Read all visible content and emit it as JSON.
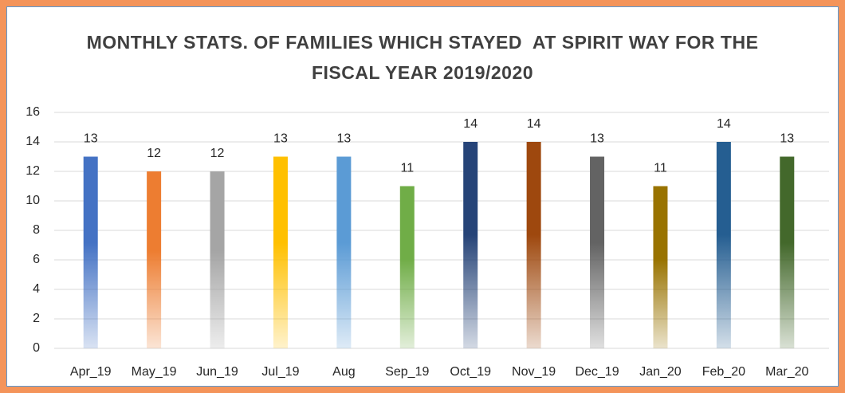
{
  "chart_data": {
    "type": "bar",
    "title": "MONTHLY STATS. OF FAMILIES WHICH STAYED  AT SPIRIT WAY FOR THE FISCAL YEAR 2019/2020",
    "categories": [
      "Apr_19",
      "May_19",
      "Jun_19",
      "Jul_19",
      "Aug",
      "Sep_19",
      "Oct_19",
      "Nov_19",
      "Dec_19",
      "Jan_20",
      "Feb_20",
      "Mar_20"
    ],
    "values": [
      13,
      12,
      12,
      13,
      13,
      11,
      14,
      14,
      13,
      11,
      14,
      13
    ],
    "colors": [
      "#4472c4",
      "#ed7d31",
      "#a5a5a5",
      "#ffc000",
      "#5b9bd5",
      "#70ad47",
      "#264478",
      "#9e480e",
      "#636363",
      "#997300",
      "#255e91",
      "#43682b"
    ],
    "ylim": [
      0,
      16
    ],
    "yticks": [
      0,
      2,
      4,
      6,
      8,
      10,
      12,
      14,
      16
    ],
    "grid": true
  }
}
